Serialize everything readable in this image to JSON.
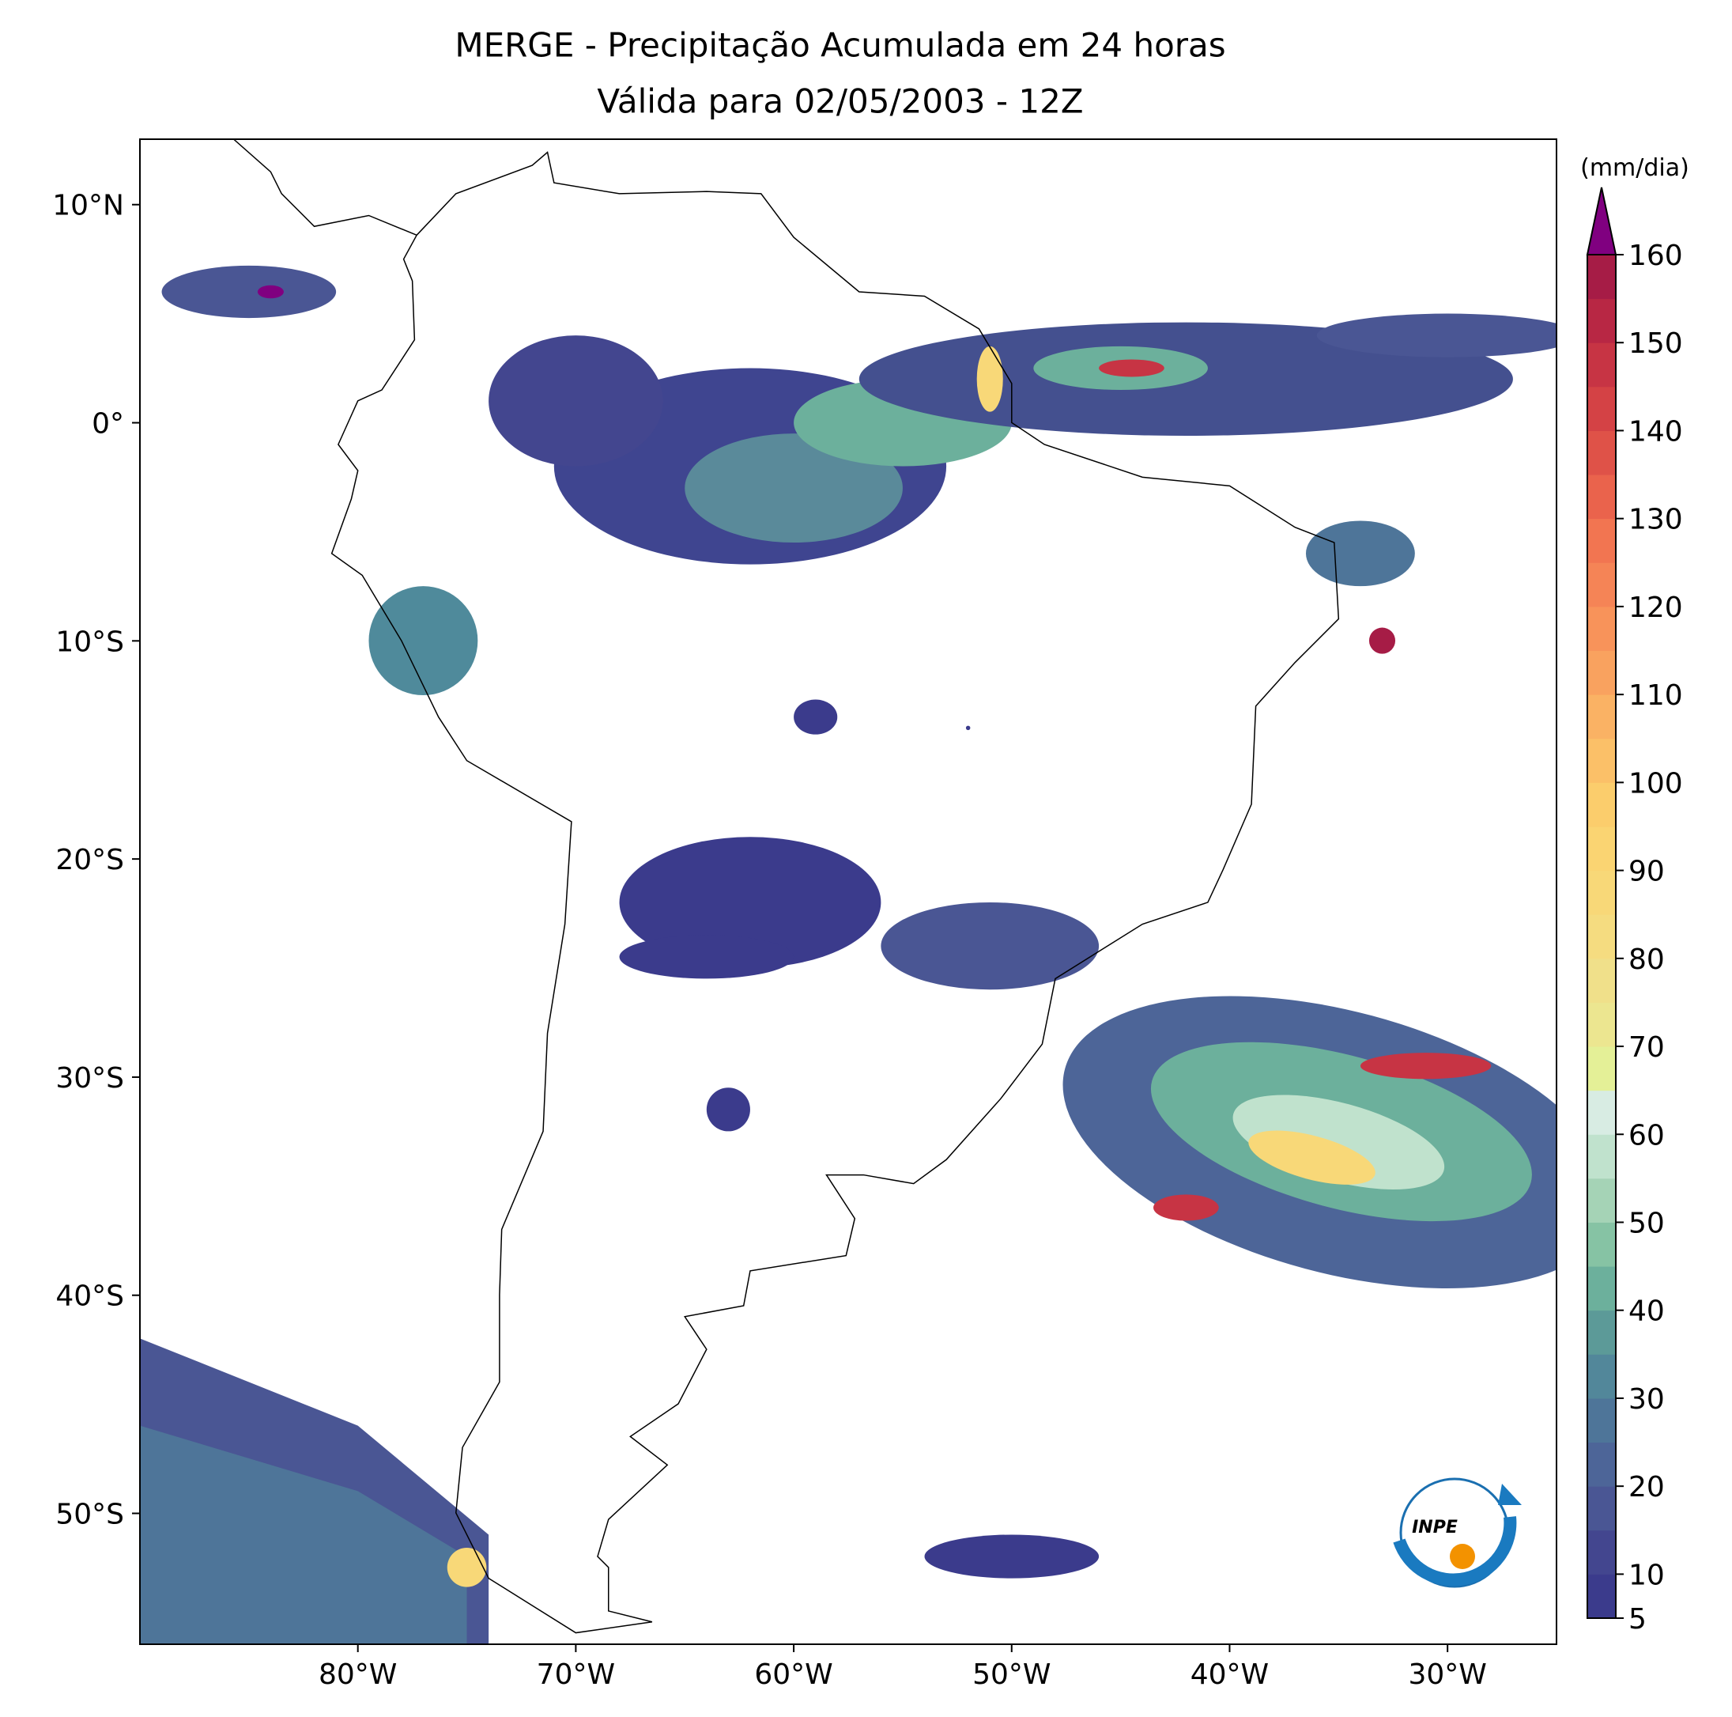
{
  "title": [
    "MERGE - Precipitação Acumulada em 24 horas",
    "Válida para 02/05/2003 - 12Z"
  ],
  "map": {
    "type": "contour-map",
    "xlim": [
      -90,
      -25
    ],
    "ylim": [
      -56,
      13
    ],
    "xticks": [
      {
        "value": -80,
        "label": "80°W"
      },
      {
        "value": -70,
        "label": "70°W"
      },
      {
        "value": -60,
        "label": "60°W"
      },
      {
        "value": -50,
        "label": "50°W"
      },
      {
        "value": -40,
        "label": "40°W"
      },
      {
        "value": -30,
        "label": "30°W"
      }
    ],
    "yticks": [
      {
        "value": 10,
        "label": "10°N"
      },
      {
        "value": 0,
        "label": "0°"
      },
      {
        "value": -10,
        "label": "10°S"
      },
      {
        "value": -20,
        "label": "20°S"
      },
      {
        "value": -30,
        "label": "30°S"
      },
      {
        "value": -40,
        "label": "40°S"
      },
      {
        "value": -50,
        "label": "50°S"
      }
    ]
  },
  "colorbar": {
    "label": "(mm/dia)",
    "levels": [
      5,
      10,
      15,
      20,
      25,
      30,
      35,
      40,
      45,
      50,
      55,
      60,
      65,
      70,
      75,
      80,
      85,
      90,
      95,
      100,
      105,
      110,
      115,
      120,
      125,
      130,
      135,
      140,
      145,
      150,
      155,
      160
    ],
    "colors": [
      "#3b3b8c",
      "#43468f",
      "#4a5694",
      "#4d6598",
      "#4e7599",
      "#52879a",
      "#5c9a98",
      "#6cb09c",
      "#86c3a4",
      "#a5d3b6",
      "#c0e2cd",
      "#d8ece3",
      "#e4f097",
      "#ece690",
      "#f0e08a",
      "#f5dc80",
      "#f8d878",
      "#fad472",
      "#fbcd6c",
      "#fbc068",
      "#fab264",
      "#f9a25f",
      "#f8935a",
      "#f58456",
      "#f27551",
      "#ea634c",
      "#df5248",
      "#d44245",
      "#c73444",
      "#b82744",
      "#a61c46"
    ],
    "extend_color": "#800080",
    "ticks": [
      5,
      10,
      20,
      30,
      40,
      50,
      60,
      70,
      80,
      90,
      100,
      110,
      120,
      130,
      140,
      150,
      160
    ]
  },
  "logo": "INPE"
}
